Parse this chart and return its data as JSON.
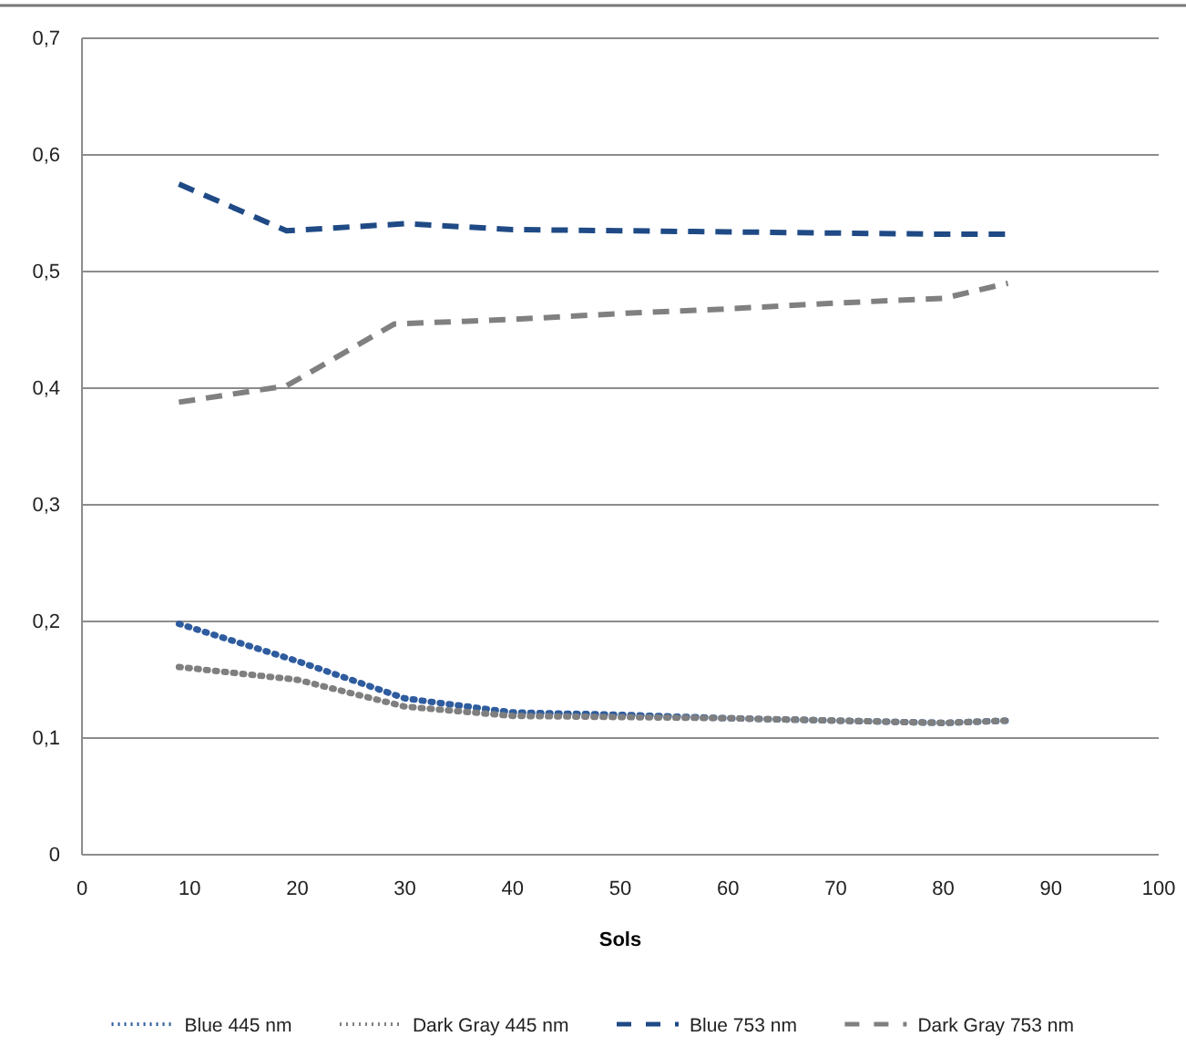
{
  "chart_data": {
    "type": "line",
    "xlabel": "Sols",
    "xlim": [
      0,
      100
    ],
    "xticks": [
      0,
      10,
      20,
      30,
      40,
      50,
      60,
      70,
      80,
      90,
      100
    ],
    "ylim": [
      0,
      0.7
    ],
    "yticks": [
      0,
      {
        "value": 0.1,
        "label": "0,1"
      },
      {
        "value": 0.2,
        "label": "0,2"
      },
      {
        "value": 0.3,
        "label": "0,3"
      },
      {
        "value": 0.4,
        "label": "0,4"
      },
      {
        "value": 0.5,
        "label": "0,5"
      },
      {
        "value": 0.6,
        "label": "0,6"
      },
      {
        "value": 0.7,
        "label": "0,7"
      }
    ],
    "grid": "y",
    "legend": "bottom",
    "marker": "none",
    "series": [
      {
        "name": "Blue 445 nm",
        "color": "#2e5c9e",
        "line_style": "dotted",
        "x": [
          9,
          20,
          30,
          40,
          50,
          60,
          70,
          80,
          86
        ],
        "values": [
          0.198,
          0.166,
          0.134,
          0.122,
          0.12,
          0.117,
          0.115,
          0.113,
          0.115
        ]
      },
      {
        "name": "Dark Gray 445 nm",
        "color": "#7f7f7f",
        "line_style": "dotted",
        "x": [
          9,
          20,
          30,
          40,
          50,
          60,
          70,
          80,
          86
        ],
        "values": [
          0.161,
          0.15,
          0.127,
          0.119,
          0.118,
          0.117,
          0.115,
          0.113,
          0.115
        ]
      },
      {
        "name": "Blue 753 nm",
        "color": "#1f4a85",
        "line_style": "dashed",
        "x": [
          9,
          19,
          30,
          40,
          50,
          60,
          70,
          80,
          86
        ],
        "values": [
          0.575,
          0.535,
          0.541,
          0.536,
          0.535,
          0.534,
          0.533,
          0.532,
          0.532
        ]
      },
      {
        "name": "Dark Gray 753 nm",
        "color": "#808080",
        "line_style": "dashed",
        "x": [
          9,
          19,
          29,
          40,
          50,
          60,
          70,
          80,
          86
        ],
        "values": [
          0.388,
          0.402,
          0.455,
          0.459,
          0.464,
          0.468,
          0.473,
          0.477,
          0.49
        ]
      }
    ]
  }
}
